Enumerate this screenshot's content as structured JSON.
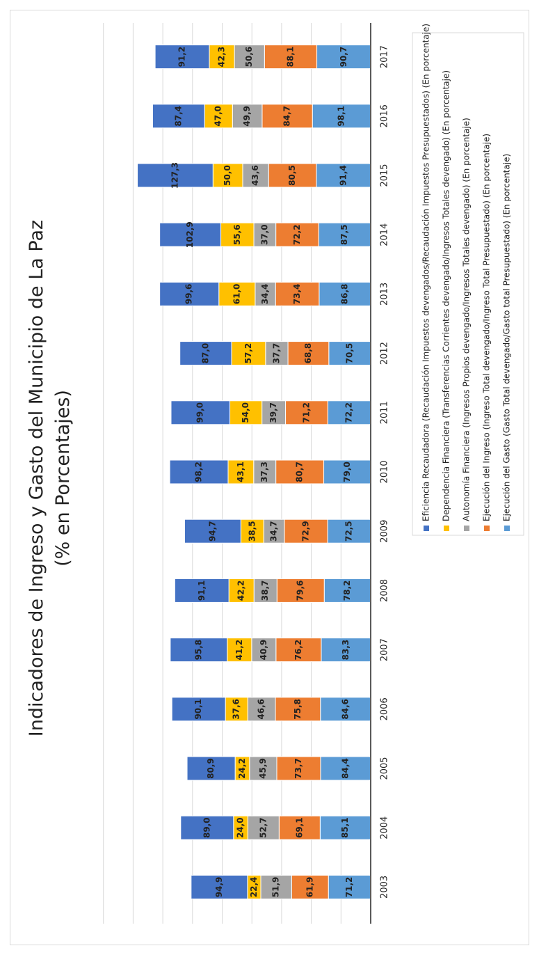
{
  "chart_data": {
    "type": "bar",
    "stacked": true,
    "orientation": "rotated-90",
    "title": "Indicadores de Ingreso y Gasto del Municipio de La Paz",
    "subtitle": "(% en Porcentajes)",
    "categories": [
      "2003",
      "2004",
      "2005",
      "2006",
      "2007",
      "2008",
      "2009",
      "2010",
      "2011",
      "2012",
      "2013",
      "2014",
      "2015",
      "2016",
      "2017"
    ],
    "series": [
      {
        "name": "Ejecución del Gasto (Gasto Total devengado/Gasto total Presupuestado) (En porcentaje)",
        "color": "#5b9bd5",
        "values": [
          71.2,
          85.1,
          84.4,
          84.6,
          83.3,
          78.2,
          72.5,
          79.0,
          72.2,
          70.5,
          86.8,
          87.5,
          91.4,
          98.1,
          90.7
        ],
        "labels": [
          "71,2",
          "85,1",
          "84,4",
          "84,6",
          "83,3",
          "78,2",
          "72,5",
          "79,0",
          "72,2",
          "70,5",
          "86,8",
          "87,5",
          "91,4",
          "98,1",
          "90,7"
        ]
      },
      {
        "name": "Ejecución del Ingreso (Ingreso Total devengado/Ingreso Total Presupuestado) (En porcentaje)",
        "color": "#ed7d31",
        "values": [
          61.9,
          69.1,
          73.7,
          75.8,
          76.2,
          79.6,
          72.9,
          80.7,
          71.2,
          68.8,
          73.4,
          72.2,
          80.5,
          84.7,
          88.1
        ],
        "labels": [
          "61,9",
          "69,1",
          "73,7",
          "75,8",
          "76,2",
          "79,6",
          "72,9",
          "80,7",
          "71,2",
          "68,8",
          "73,4",
          "72,2",
          "80,5",
          "84,7",
          "88,1"
        ]
      },
      {
        "name": "Autonomía Financiera (Ingresos Propios devengado/Ingresos Totales devengado) (En porcentaje)",
        "color": "#a5a5a5",
        "values": [
          51.9,
          52.7,
          45.9,
          46.6,
          40.9,
          38.7,
          34.7,
          37.3,
          39.7,
          37.7,
          34.4,
          37.0,
          43.6,
          49.9,
          50.6
        ],
        "labels": [
          "51,9",
          "52,7",
          "45,9",
          "46,6",
          "40,9",
          "38,7",
          "34,7",
          "37,3",
          "39,7",
          "37,7",
          "34,4",
          "37,0",
          "43,6",
          "49,9",
          "50,6"
        ]
      },
      {
        "name": "Dependencia Financiera (Transferencias Corrientes devengado/Ingresos Totales devengado) (En porcentaje)",
        "color": "#ffc000",
        "values": [
          22.4,
          24.0,
          24.2,
          37.6,
          41.2,
          42.2,
          38.5,
          43.1,
          54.0,
          57.2,
          61.0,
          55.6,
          50.0,
          47.0,
          42.3
        ],
        "labels": [
          "22,4",
          "24,0",
          "24,2",
          "37,6",
          "41,2",
          "42,2",
          "38,5",
          "43,1",
          "54,0",
          "57,2",
          "61,0",
          "55,6",
          "50,0",
          "47,0",
          "42,3"
        ]
      },
      {
        "name": "Eficiencia Recaudadora (Recaudación Impuestos devengados/Recaudación Impuestos Presupuestados) (En porcentaje)",
        "color": "#4472c4",
        "values": [
          94.9,
          89.0,
          80.9,
          90.1,
          95.8,
          91.1,
          94.7,
          98.2,
          99.0,
          87.0,
          99.6,
          102.9,
          127.3,
          87.4,
          91.2
        ],
        "labels": [
          "94,9",
          "89,0",
          "80,9",
          "90,1",
          "95,8",
          "91,1",
          "94,7",
          "98,2",
          "99,0",
          "87,0",
          "99,6",
          "102,9",
          "127,3",
          "87,4",
          "91,2"
        ]
      }
    ],
    "legend_order": [
      4,
      3,
      2,
      1,
      0
    ],
    "legend_placement": "right",
    "grid": true,
    "ylim": [
      0,
      450
    ]
  }
}
